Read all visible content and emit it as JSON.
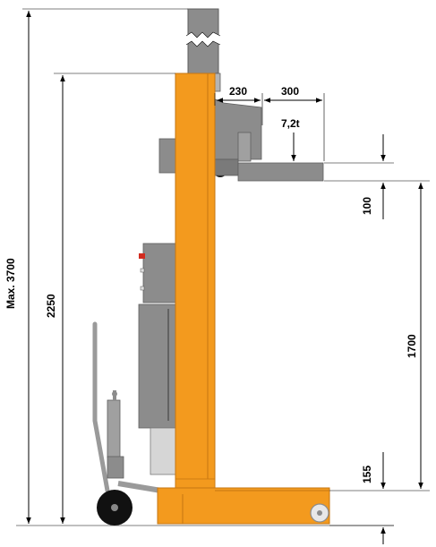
{
  "dimensions": {
    "max_height": "Max. 3700",
    "lift_height": "2250",
    "fork_offset": "230",
    "fork_length": "300",
    "capacity": "7,2t",
    "fork_thickness": "100",
    "lift_range": "1700",
    "bottom_clearance": "155"
  },
  "colors": {
    "frame": "#f39a1e",
    "frame_edge": "#c67612",
    "steel": "#8c8c8c",
    "steel_dark": "#5e5e5e",
    "steel_light": "#b4b4b4"
  }
}
